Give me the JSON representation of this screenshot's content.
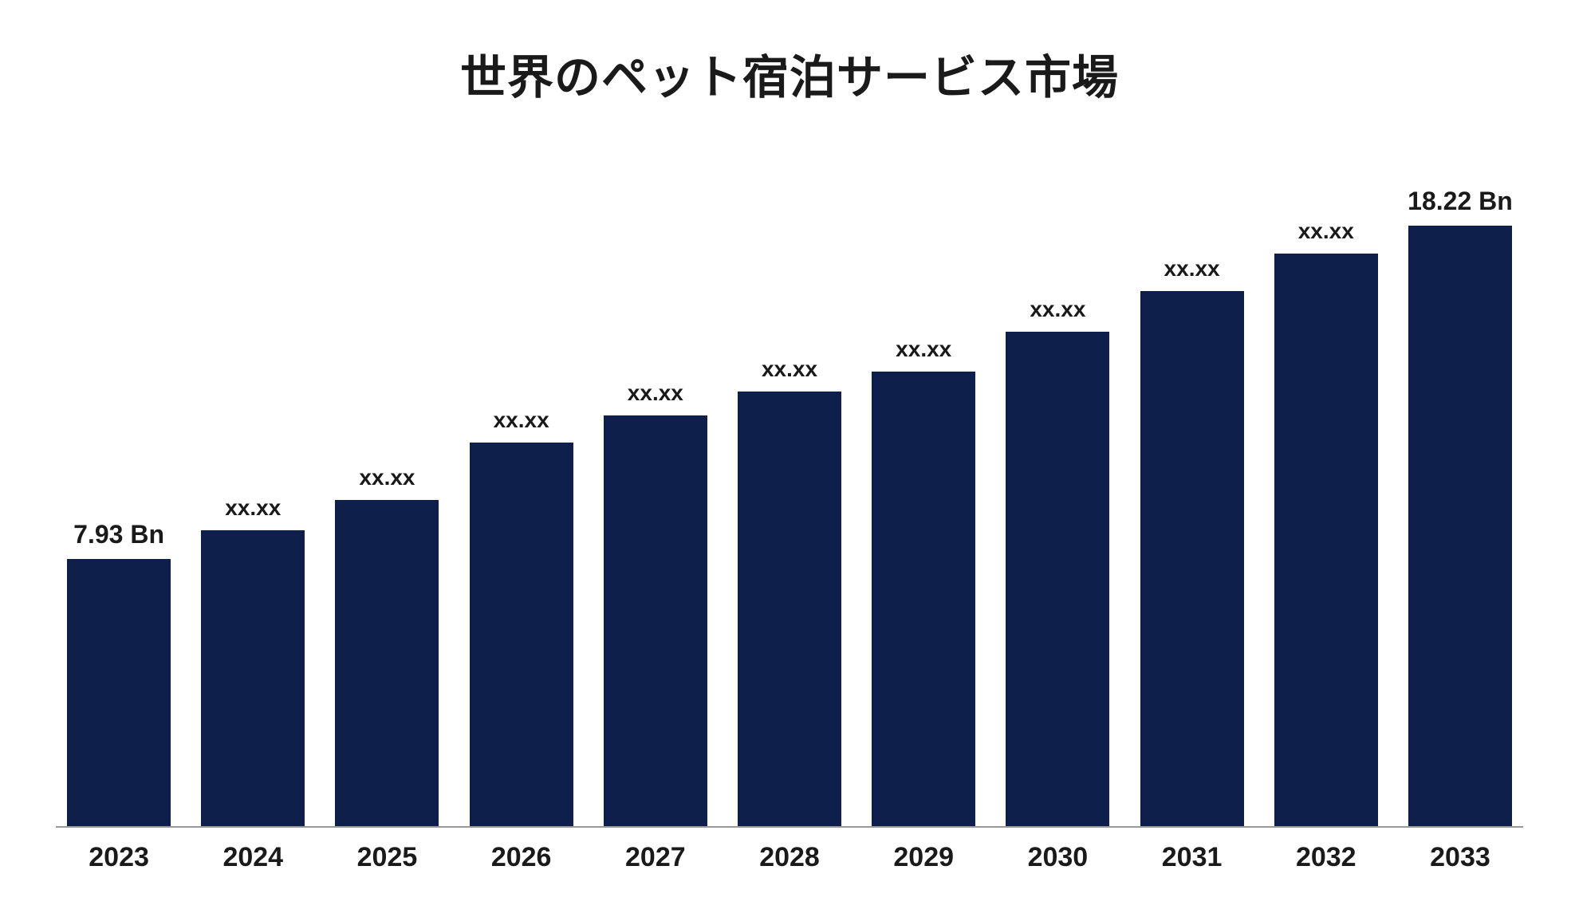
{
  "chart": {
    "type": "bar",
    "title": "世界のペット宿泊サービス市場",
    "title_fontsize": 58,
    "title_color": "#1a1a1a",
    "background_color": "#ffffff",
    "baseline_color": "#999999",
    "bar_color": "#0d1f4a",
    "bar_max_width": 130,
    "ylim": [
      0,
      19
    ],
    "categories": [
      "2023",
      "2024",
      "2025",
      "2026",
      "2027",
      "2028",
      "2029",
      "2030",
      "2031",
      "2032",
      "2033"
    ],
    "values": [
      7.93,
      8.8,
      9.7,
      11.4,
      12.2,
      12.9,
      13.5,
      14.7,
      15.9,
      17.0,
      18.22
    ],
    "value_labels": [
      "7.93 Bn",
      "xx.xx",
      "xx.xx",
      "xx.xx",
      "xx.xx",
      "xx.xx",
      "xx.xx",
      "xx.xx",
      "xx.xx",
      "xx.xx",
      "18.22 Bn"
    ],
    "value_label_emphasis": [
      true,
      false,
      false,
      false,
      false,
      false,
      false,
      false,
      false,
      false,
      true
    ],
    "x_label_fontsize": 34,
    "value_label_fontsize_large": 32,
    "value_label_fontsize_small": 28
  }
}
